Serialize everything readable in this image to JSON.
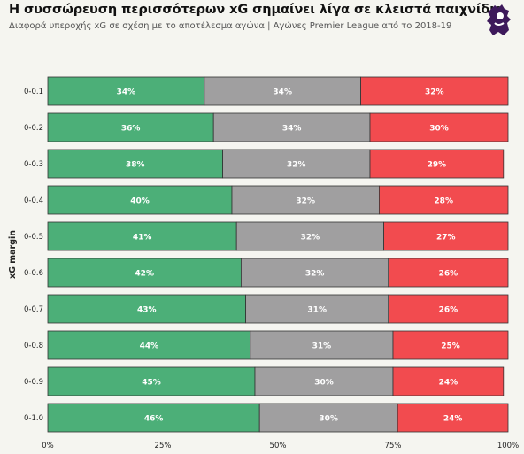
{
  "title": "Η συσσώρευση περισσότερων xG σημαίνει λίγα σε κλειστά παιχνίδια",
  "subtitle": "Διαφορά υπεροχής xG σε σχέση με το αποτέλεσμα αγώνα | Αγώνες Premier League από το 2018-19",
  "logo": {
    "icon": "premier-league-lion-icon",
    "color": "#3d195b"
  },
  "colors": {
    "green": "#4caf78",
    "grey": "#a09fa0",
    "red": "#f24b4f",
    "background": "#f5f5f0"
  },
  "chart_data": {
    "type": "bar",
    "orientation": "horizontal",
    "stacked": true,
    "categories": [
      "0-0.1",
      "0-0.2",
      "0-0.3",
      "0-0.4",
      "0-0.5",
      "0-0.6",
      "0-0.7",
      "0-0.8",
      "0-0.9",
      "0-1.0"
    ],
    "series": [
      {
        "color": "#4caf78",
        "values": [
          34,
          36,
          38,
          40,
          41,
          42,
          43,
          44,
          45,
          46
        ],
        "labels": [
          "34%",
          "36%",
          "38%",
          "40%",
          "41%",
          "42%",
          "43%",
          "44%",
          "45%",
          "46%"
        ]
      },
      {
        "color": "#a09fa0",
        "values": [
          34,
          34,
          32,
          32,
          32,
          32,
          31,
          31,
          30,
          30
        ],
        "labels": [
          "34%",
          "34%",
          "32%",
          "32%",
          "32%",
          "32%",
          "31%",
          "31%",
          "30%",
          "30%"
        ]
      },
      {
        "color": "#f24b4f",
        "values": [
          32,
          30,
          29,
          28,
          27,
          26,
          26,
          25,
          24,
          24
        ],
        "labels": [
          "32%",
          "30%",
          "29%",
          "28%",
          "27%",
          "26%",
          "26%",
          "25%",
          "24%",
          "24%"
        ]
      }
    ],
    "xlim": [
      0,
      100
    ],
    "xticks": [
      0,
      25,
      50,
      75,
      100
    ],
    "xtick_labels": [
      "0%",
      "25%",
      "50%",
      "75%",
      "100%"
    ],
    "ylabel": "xG margin",
    "xlabel": "",
    "grid": false
  }
}
